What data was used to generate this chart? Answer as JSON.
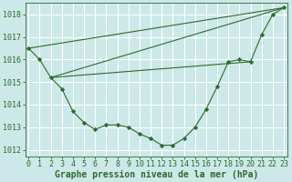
{
  "title": "",
  "xlabel": "Graphe pression niveau de la mer (hPa)",
  "ylabel": "",
  "bg_color": "#cce8e8",
  "plot_bg_color": "#cce8e8",
  "grid_color": "#ffffff",
  "line_color": "#2d6a2d",
  "marker_color": "#2d6a2d",
  "ylim": [
    1011.7,
    1018.5
  ],
  "xlim": [
    -0.3,
    23.3
  ],
  "yticks": [
    1012,
    1013,
    1014,
    1015,
    1016,
    1017,
    1018
  ],
  "xticks": [
    0,
    1,
    2,
    3,
    4,
    5,
    6,
    7,
    8,
    9,
    10,
    11,
    12,
    13,
    14,
    15,
    16,
    17,
    18,
    19,
    20,
    21,
    22,
    23
  ],
  "line1_x": [
    0,
    1,
    2,
    3,
    4,
    5,
    6,
    7,
    8,
    9,
    10,
    11,
    12,
    13,
    14,
    15,
    16,
    17,
    18,
    19,
    20,
    21,
    22,
    23
  ],
  "line1_y": [
    1016.5,
    1016.0,
    1015.2,
    1014.7,
    1013.7,
    1013.2,
    1012.9,
    1013.1,
    1013.1,
    1013.0,
    1012.7,
    1012.5,
    1012.2,
    1012.2,
    1012.5,
    1013.0,
    1013.8,
    1014.8,
    1015.9,
    1016.0,
    1015.9,
    1017.1,
    1018.0,
    1018.3
  ],
  "line2_x": [
    0,
    23
  ],
  "line2_y": [
    1016.5,
    1018.3
  ],
  "line3_x": [
    2,
    23
  ],
  "line3_y": [
    1015.2,
    1018.3
  ],
  "line4_x": [
    2,
    20
  ],
  "line4_y": [
    1015.2,
    1015.9
  ],
  "font_color": "#2d6a2d",
  "tick_fontsize": 6.0,
  "label_fontsize": 7.0
}
